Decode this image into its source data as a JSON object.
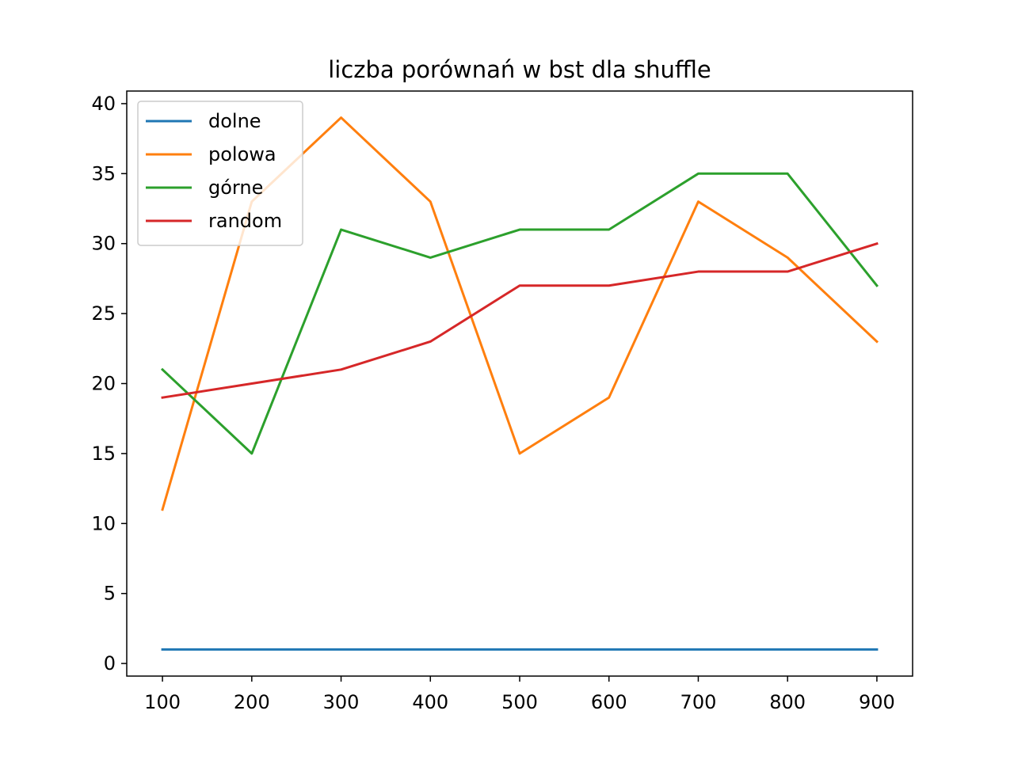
{
  "chart_data": {
    "type": "line",
    "title": "liczba porównań w bst dla shuffle",
    "xlabel": "",
    "ylabel": "",
    "x": [
      100,
      200,
      300,
      400,
      500,
      600,
      700,
      800,
      900
    ],
    "xticks": [
      "100",
      "200",
      "300",
      "400",
      "500",
      "600",
      "700",
      "800",
      "900"
    ],
    "yticks": [
      "0",
      "5",
      "10",
      "15",
      "20",
      "25",
      "30",
      "35",
      "40"
    ],
    "xlim": [
      60,
      940
    ],
    "ylim": [
      -0.9,
      40.9
    ],
    "grid": false,
    "legend_position": "top-left",
    "series": [
      {
        "name": "dolne",
        "color": "#1f77b4",
        "values": [
          1,
          1,
          1,
          1,
          1,
          1,
          1,
          1,
          1
        ]
      },
      {
        "name": "polowa",
        "color": "#ff7f0e",
        "values": [
          11,
          33,
          39,
          33,
          15,
          19,
          33,
          29,
          23
        ]
      },
      {
        "name": "górne",
        "color": "#2ca02c",
        "values": [
          21,
          15,
          31,
          29,
          31,
          31,
          35,
          35,
          27
        ]
      },
      {
        "name": "random",
        "color": "#d62728",
        "values": [
          19,
          20,
          21,
          23,
          27,
          27,
          28,
          28,
          30
        ]
      }
    ]
  }
}
